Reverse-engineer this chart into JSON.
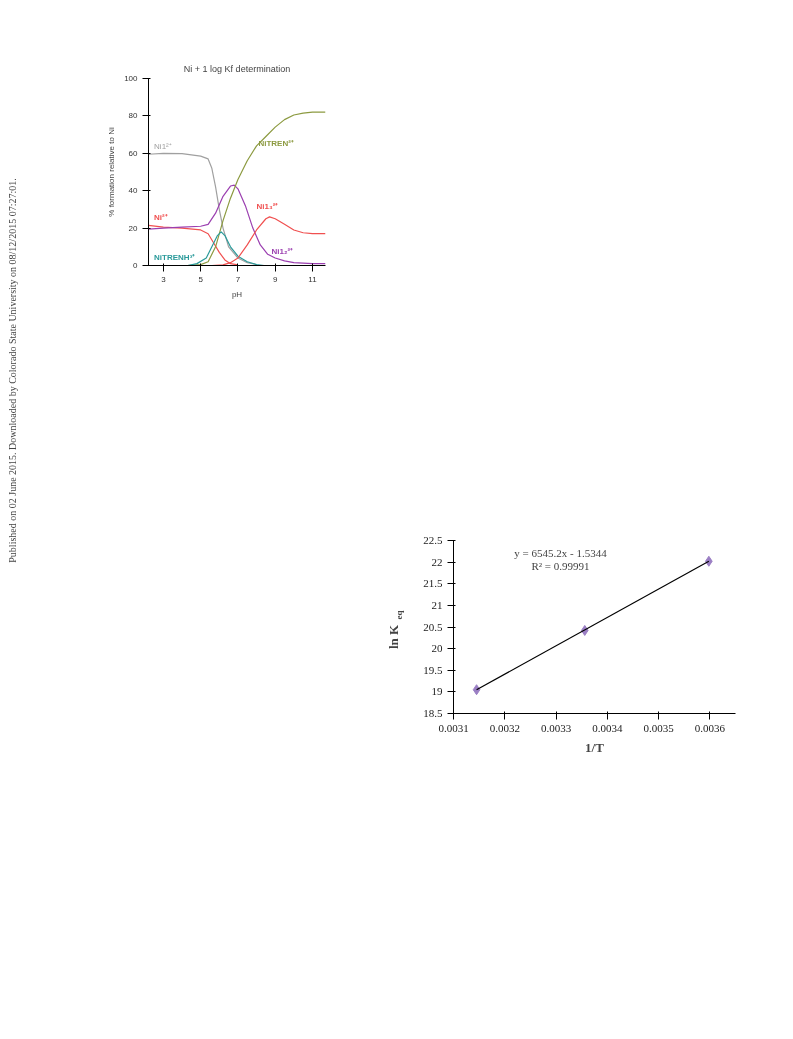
{
  "chart_data": [
    {
      "type": "line",
      "title": "Ni + 1 log Kf determination",
      "xlabel": "pH",
      "ylabel": "% formation relative to Ni",
      "xlim": [
        2.2,
        11.7
      ],
      "ylim": [
        0,
        100
      ],
      "xticks": [
        3,
        5,
        7,
        9,
        11
      ],
      "yticks": [
        0,
        20,
        40,
        60,
        80,
        100
      ],
      "grid": false,
      "marker": "none",
      "line_style": "solid",
      "annotations": [
        "Published on 02 June 2015. Downloaded by Colorado State University on 08/12/2015 07:27:01."
      ],
      "series": [
        {
          "name": "Ni1²⁺",
          "color": "#a0a0a0",
          "x": [
            2.2,
            3,
            4,
            5,
            5.4,
            5.6,
            5.8,
            6.0,
            6.2,
            6.5,
            7,
            7.5,
            8
          ],
          "values": [
            59.5,
            60,
            59.8,
            58.5,
            57,
            52,
            42,
            30,
            20,
            10,
            4,
            1.5,
            0.5
          ]
        },
        {
          "name": "Ni²⁺",
          "color": "#f05050",
          "x": [
            2.2,
            3,
            4,
            5,
            5.4,
            5.7,
            6.0,
            6.3,
            6.6,
            7
          ],
          "values": [
            21.5,
            20.5,
            20,
            19,
            17,
            12,
            7,
            3,
            1,
            0.3
          ]
        },
        {
          "name": "Ni1₂²⁺",
          "color": "#9b3fb0",
          "x": [
            2.2,
            3,
            4,
            5,
            5.4,
            5.8,
            6.2,
            6.6,
            6.8,
            7.0,
            7.4,
            7.8,
            8.2,
            8.6,
            9,
            9.5,
            10,
            11,
            11.7
          ],
          "values": [
            19.5,
            20,
            20.5,
            21,
            22,
            28,
            37,
            42.5,
            43,
            41,
            32,
            20,
            11,
            6,
            4,
            2.5,
            1.5,
            1,
            1
          ]
        },
        {
          "name": "NiTREN²⁺",
          "color": "#8c9a40",
          "x": [
            4.3,
            5,
            5.4,
            5.8,
            6.2,
            6.6,
            7,
            7.5,
            8,
            8.5,
            9,
            9.5,
            10,
            10.5,
            11,
            11.7
          ],
          "values": [
            0,
            0.5,
            2,
            10,
            24,
            36,
            46,
            56,
            64,
            69,
            74,
            78,
            80.5,
            81.5,
            82,
            82
          ]
        },
        {
          "name": "NiTRENH³⁺",
          "color": "#2a9a9a",
          "x": [
            4.3,
            4.8,
            5.3,
            5.6,
            5.9,
            6.1,
            6.3,
            6.6,
            7,
            7.5,
            8,
            8.4
          ],
          "values": [
            0,
            1,
            4,
            10,
            16,
            18,
            16,
            10,
            5,
            2,
            0.5,
            0
          ]
        },
        {
          "name": "Ni1₃²⁺",
          "color": "#f05050",
          "x": [
            5.6,
            6.2,
            6.6,
            7,
            7.5,
            8,
            8.5,
            8.7,
            9,
            9.5,
            10,
            10.5,
            11,
            11.7
          ],
          "values": [
            0,
            0.3,
            1.5,
            4,
            11,
            19,
            25,
            26,
            25,
            22,
            19,
            17.5,
            17,
            17
          ]
        }
      ]
    },
    {
      "type": "scatter",
      "xlabel": "1/T",
      "ylabel": "ln K$_{eq}$",
      "xlim": [
        0.0031,
        0.00365
      ],
      "ylim": [
        18.5,
        22.5
      ],
      "xticks": [
        0.0031,
        0.0032,
        0.0033,
        0.0034,
        0.0035,
        0.0036
      ],
      "yticks": [
        18.5,
        19,
        19.5,
        20,
        20.5,
        21,
        21.5,
        22,
        22.5
      ],
      "grid": false,
      "marker": "diamond",
      "annotations": [
        "y = 6545.2x - 1.5344",
        "R² = 0.99991"
      ],
      "series": [
        {
          "type": "scatter",
          "color": "#9b7fc4",
          "x": [
            0.003145,
            0.003356,
            0.003598
          ],
          "values": [
            19.05,
            20.42,
            22.02
          ]
        },
        {
          "type": "line",
          "marker": "none",
          "color": "#000000",
          "x": [
            0.003145,
            0.003598
          ],
          "values": [
            19.05,
            22.02
          ]
        }
      ]
    }
  ]
}
